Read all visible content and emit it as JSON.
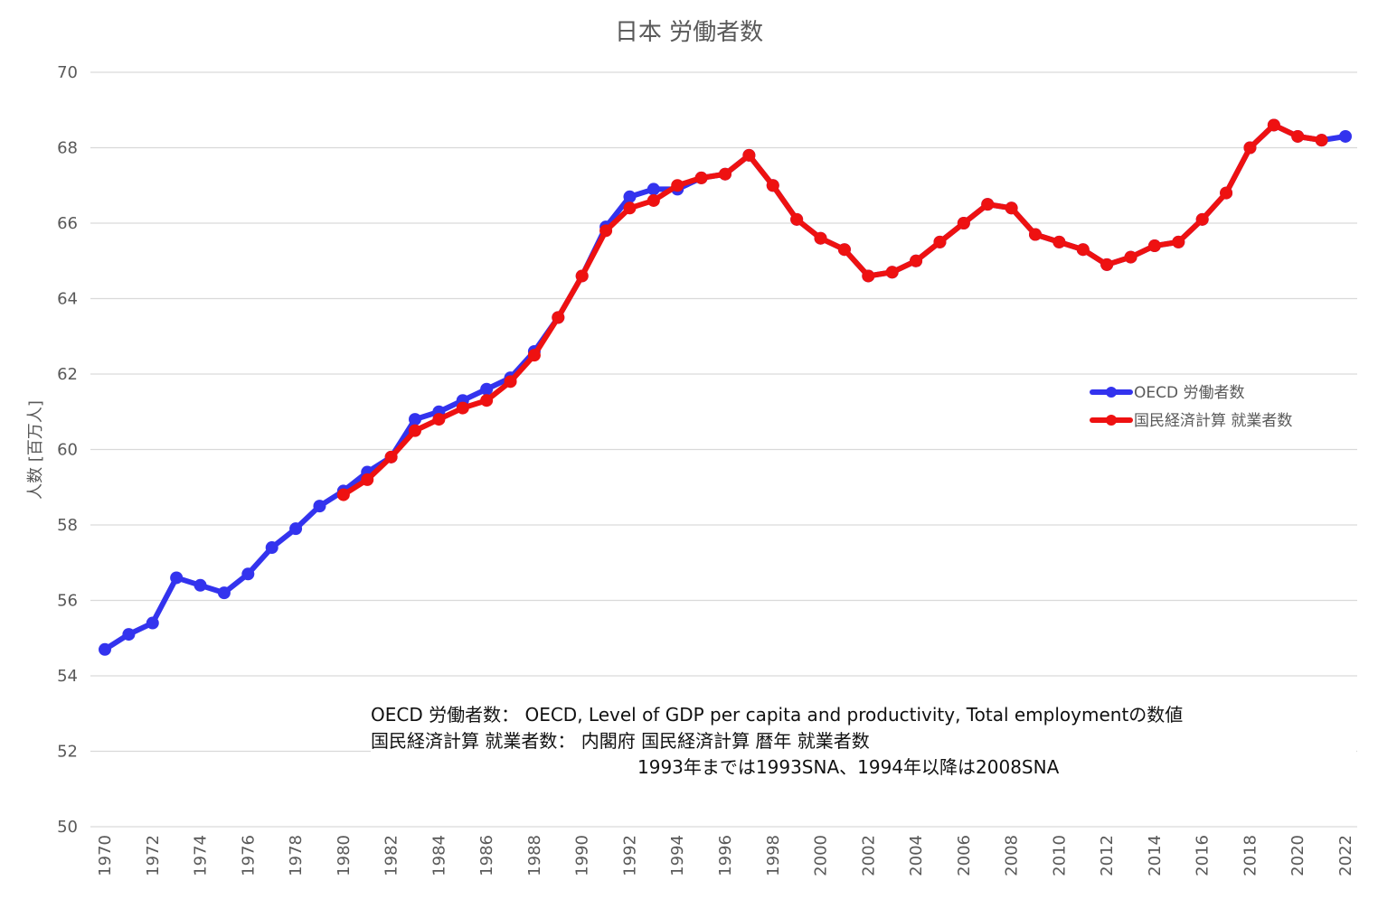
{
  "chart_data": {
    "type": "line",
    "title": "日本 労働者数",
    "ylabel": "人数 [百万人]",
    "xlabel": "",
    "ylim": [
      50,
      70
    ],
    "yticks": [
      50,
      52,
      54,
      56,
      58,
      60,
      62,
      64,
      66,
      68,
      70
    ],
    "xlim": [
      1970,
      2022
    ],
    "xticks": [
      1970,
      1972,
      1974,
      1976,
      1978,
      1980,
      1982,
      1984,
      1986,
      1988,
      1990,
      1992,
      1994,
      1996,
      1998,
      2000,
      2002,
      2004,
      2006,
      2008,
      2010,
      2012,
      2014,
      2016,
      2018,
      2020,
      2022
    ],
    "grid": true,
    "legend_position": "right",
    "series": [
      {
        "name": "OECD 労働者数",
        "color": "#3333ee",
        "x": [
          1970,
          1971,
          1972,
          1973,
          1974,
          1975,
          1976,
          1977,
          1978,
          1979,
          1980,
          1981,
          1982,
          1983,
          1984,
          1985,
          1986,
          1987,
          1988,
          1989,
          1990,
          1991,
          1992,
          1993,
          1994,
          1995,
          1996,
          1997,
          1998,
          1999,
          2000,
          2001,
          2002,
          2003,
          2004,
          2005,
          2006,
          2007,
          2008,
          2009,
          2010,
          2011,
          2012,
          2013,
          2014,
          2015,
          2016,
          2017,
          2018,
          2019,
          2020,
          2021,
          2022
        ],
        "values": [
          54.7,
          55.1,
          55.4,
          56.6,
          56.4,
          56.2,
          56.7,
          57.4,
          57.9,
          58.5,
          58.9,
          59.4,
          59.8,
          60.8,
          61.0,
          61.3,
          61.6,
          61.9,
          62.6,
          63.5,
          64.6,
          65.9,
          66.7,
          66.9,
          66.9,
          67.2,
          67.3,
          67.8,
          67.0,
          66.1,
          65.6,
          65.3,
          64.6,
          64.7,
          65.0,
          65.5,
          66.0,
          66.5,
          66.4,
          65.7,
          65.5,
          65.3,
          64.9,
          65.1,
          65.4,
          65.5,
          66.1,
          66.8,
          68.0,
          68.6,
          68.3,
          68.2,
          68.3
        ]
      },
      {
        "name": "国民経済計算 就業者数",
        "color": "#ee1111",
        "x": [
          1980,
          1981,
          1982,
          1983,
          1984,
          1985,
          1986,
          1987,
          1988,
          1989,
          1990,
          1991,
          1992,
          1993,
          1994,
          1995,
          1996,
          1997,
          1998,
          1999,
          2000,
          2001,
          2002,
          2003,
          2004,
          2005,
          2006,
          2007,
          2008,
          2009,
          2010,
          2011,
          2012,
          2013,
          2014,
          2015,
          2016,
          2017,
          2018,
          2019,
          2020,
          2021
        ],
        "values": [
          58.8,
          59.2,
          59.8,
          60.5,
          60.8,
          61.1,
          61.3,
          61.8,
          62.5,
          63.5,
          64.6,
          65.8,
          66.4,
          66.6,
          67.0,
          67.2,
          67.3,
          67.8,
          67.0,
          66.1,
          65.6,
          65.3,
          64.6,
          64.7,
          65.0,
          65.5,
          66.0,
          66.5,
          66.4,
          65.7,
          65.5,
          65.3,
          64.9,
          65.1,
          65.4,
          65.5,
          66.1,
          66.8,
          68.0,
          68.6,
          68.3,
          68.2
        ]
      }
    ]
  },
  "notes": {
    "line1": "OECD 労働者数： OECD, Level of GDP per capita and productivity, Total employmentの数値",
    "line2": "国民経済計算 就業者数： 内閣府 国民経済計算 暦年 就業者数",
    "line3": "1993年までは1993SNA、1994年以降は2008SNA"
  }
}
